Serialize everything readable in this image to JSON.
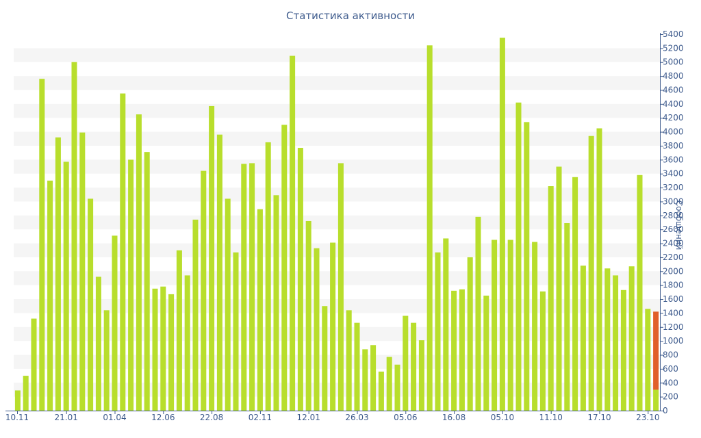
{
  "chart_data": {
    "type": "bar",
    "title": "Статистика активности",
    "ylabel": "Сообщений",
    "ylim": [
      0,
      5400
    ],
    "ytick_step": 200,
    "grid": true,
    "x_tick_labels": [
      "10.11",
      "21.01",
      "01.04",
      "12.06",
      "22.08",
      "02.11",
      "12.01",
      "26.03",
      "05.06",
      "16.08",
      "05.10",
      "11.10",
      "17.10",
      "23.10"
    ],
    "x_tick_bar_index": [
      0,
      6,
      12,
      18,
      24,
      30,
      36,
      42,
      48,
      54,
      60,
      66,
      72,
      78
    ],
    "colors": {
      "bar": "#b8de2c",
      "highlight": "#e15f2a",
      "axis": "#3d5a8c",
      "grid_band": "#f5f5f5"
    },
    "values": [
      290,
      500,
      1320,
      4760,
      3300,
      3920,
      3570,
      5000,
      3990,
      3040,
      1920,
      1440,
      2510,
      4550,
      3600,
      4250,
      3710,
      1750,
      1780,
      1670,
      2300,
      1940,
      2740,
      3440,
      4370,
      3960,
      3040,
      2270,
      3540,
      3550,
      2890,
      3850,
      3090,
      4100,
      5090,
      3770,
      2720,
      2330,
      1500,
      2410,
      3550,
      1440,
      1260,
      880,
      940,
      560,
      770,
      660,
      1360,
      1260,
      1010,
      5240,
      2270,
      2470,
      1720,
      1740,
      2200,
      2780,
      1650,
      2450,
      5350,
      2450,
      4420,
      4140,
      2420,
      1710,
      3220,
      3500,
      2690,
      3350,
      2080,
      3940,
      4050,
      2040,
      1940,
      1730,
      2070,
      3380,
      1460,
      300
    ],
    "highlight_segment": {
      "bar_index": 79,
      "from": 300,
      "to": 1420
    }
  }
}
